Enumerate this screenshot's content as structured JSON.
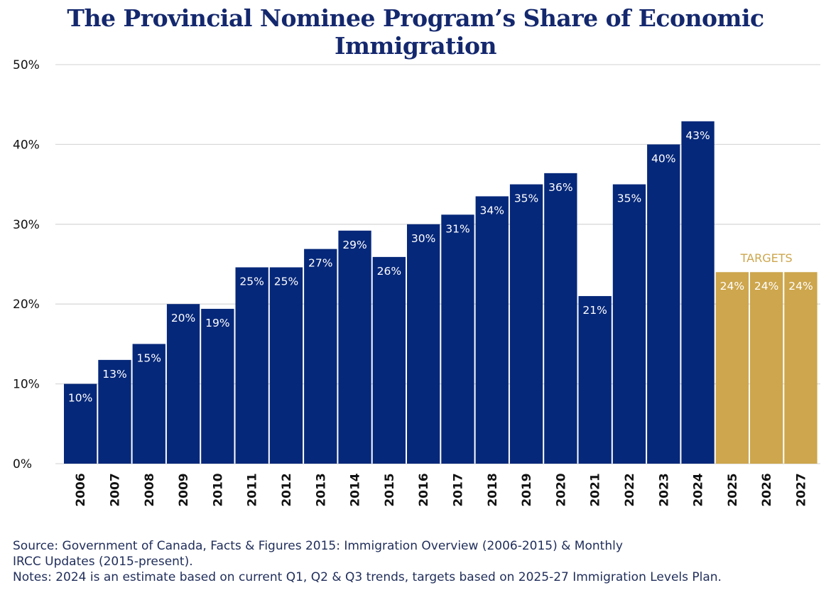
{
  "chart_data": {
    "type": "bar",
    "title": "The Provincial Nominee Program’s Share of Economic Immigration",
    "categories": [
      "2006",
      "2007",
      "2008",
      "2009",
      "2010",
      "2011",
      "2012",
      "2013",
      "2014",
      "2015",
      "2016",
      "2017",
      "2018",
      "2019",
      "2020",
      "2021",
      "2022",
      "2023",
      "2024",
      "2025",
      "2026",
      "2027"
    ],
    "values": [
      10,
      13,
      15,
      20,
      19.4,
      24.6,
      24.6,
      26.9,
      29.2,
      25.9,
      30,
      31.2,
      33.5,
      35,
      36.4,
      21,
      35,
      40,
      42.9,
      24,
      24,
      24
    ],
    "data_labels": [
      "10%",
      "13%",
      "15%",
      "20%",
      "19%",
      "25%",
      "25%",
      "27%",
      "29%",
      "26%",
      "30%",
      "31%",
      "34%",
      "35%",
      "36%",
      "21%",
      "35%",
      "40%",
      "43%",
      "24%",
      "24%",
      "24%"
    ],
    "target_categories": [
      "2025",
      "2026",
      "2027"
    ],
    "target_label": "TARGETS",
    "y_ticks": [
      {
        "value": 0,
        "label": "0%"
      },
      {
        "value": 10,
        "label": "10%"
      },
      {
        "value": 20,
        "label": "20%"
      },
      {
        "value": 30,
        "label": "30%"
      },
      {
        "value": 40,
        "label": "40%"
      },
      {
        "value": 50,
        "label": "50%"
      }
    ],
    "ylim": [
      0,
      50
    ],
    "grid": true,
    "xlabel": "",
    "ylabel": "",
    "colors": {
      "actual": "#06287a",
      "target": "#cda64d",
      "title": "#14286e",
      "grid": "#d9d9d9",
      "axis_text": "#111111"
    }
  },
  "footer": {
    "source_line1": "Source: Government of Canada, Facts & Figures 2015: Immigration Overview (2006-2015) & Monthly",
    "source_line2": "IRCC Updates (2015-present).",
    "notes": "Notes: 2024 is an estimate based on current Q1, Q2 & Q3 trends, targets based on 2025-27 Immigration Levels Plan."
  }
}
